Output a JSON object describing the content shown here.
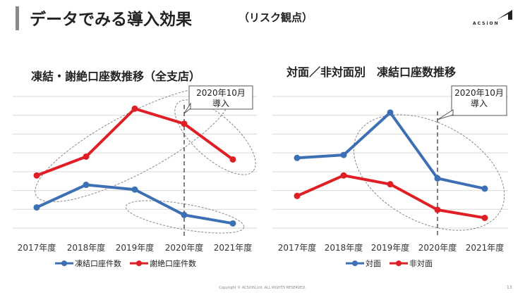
{
  "header": {
    "title": "データでみる導入効果",
    "subtitle": "（リスク観点）",
    "logo_text": "ACSiON"
  },
  "footer": {
    "copyright": "Copyright © ACSiON,Ltd. ALL RIGHTS RESERVED.",
    "page_number": "13"
  },
  "chart_data": [
    {
      "type": "line",
      "title": "凍結・謝絶口座数推移（全支店）",
      "categories": [
        "2017年度",
        "2018年度",
        "2019年度",
        "2020年度",
        "2021年度"
      ],
      "series": [
        {
          "name": "凍結口座件数",
          "color": "#3d6fb5",
          "values": [
            1.1,
            2.3,
            2.05,
            0.7,
            0.25
          ]
        },
        {
          "name": "謝絶口座件数",
          "color": "#e01e25",
          "values": [
            2.8,
            3.8,
            6.35,
            5.55,
            3.65
          ]
        }
      ],
      "ylim": [
        0,
        7
      ],
      "grid": true,
      "legend": "bottom",
      "annotation": {
        "text": "2020年10月\n導入",
        "x": 3
      }
    },
    {
      "type": "line",
      "title": "対面／非対面別　凍結口座数推移",
      "categories": [
        "2017年度",
        "2018年度",
        "2019年度",
        "2020年度",
        "2021年度"
      ],
      "series": [
        {
          "name": "対面",
          "color": "#3d6fb5",
          "values": [
            4.8,
            5.0,
            7.9,
            3.4,
            2.7
          ]
        },
        {
          "name": "非対面",
          "color": "#e01e25",
          "values": [
            2.2,
            3.6,
            3.0,
            1.25,
            0.7
          ]
        }
      ],
      "ylim": [
        0,
        9
      ],
      "grid": true,
      "legend": "bottom",
      "annotation": {
        "text": "2020年10月\n導入",
        "x": 3
      }
    }
  ]
}
